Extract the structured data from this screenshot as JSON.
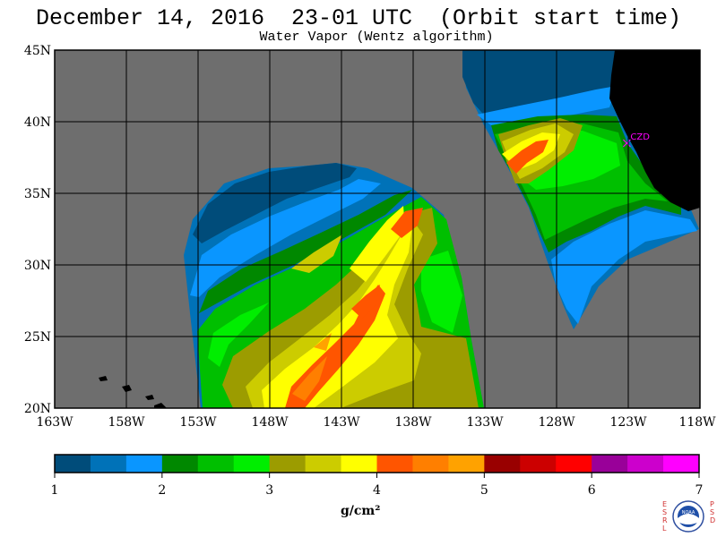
{
  "title": "December 14, 2016  23-01 UTC  (Orbit start time)",
  "subtitle": "Water Vapor (Wentz algorithm)",
  "map": {
    "lat_range": [
      20,
      45
    ],
    "lon_range": [
      -163,
      -118
    ],
    "lat_labels": [
      "45N",
      "40N",
      "35N",
      "30N",
      "25N",
      "20N"
    ],
    "lat_values": [
      45,
      40,
      35,
      30,
      25,
      20
    ],
    "lon_labels": [
      "163W",
      "158W",
      "153W",
      "148W",
      "143W",
      "138W",
      "133W",
      "128W",
      "123W",
      "118W"
    ],
    "lon_values": [
      -163,
      -158,
      -153,
      -148,
      -143,
      -138,
      -133,
      -128,
      -123,
      -118
    ],
    "no_data_color": "#6e6e6e",
    "land_color": "#000000",
    "station_label": "CZD",
    "station_color": "#ff00ff"
  },
  "colorbar": {
    "tick_labels": [
      "1",
      "2",
      "3",
      "4",
      "5",
      "6",
      "7"
    ],
    "tick_values": [
      1,
      2,
      3,
      4,
      5,
      6,
      7
    ],
    "units_label": "g/cm²",
    "colors": [
      "#004c7a",
      "#0072b8",
      "#0a96ff",
      "#008800",
      "#00bf00",
      "#00ee00",
      "#9c9c00",
      "#cccc00",
      "#ffff00",
      "#ff5500",
      "#ff7f00",
      "#ffa200",
      "#990000",
      "#cc0000",
      "#ff0000",
      "#990099",
      "#cc00cc",
      "#ff00ff"
    ]
  },
  "logo": {
    "left_letters": "ESRL",
    "right_letters": "PSD",
    "center": "NOAA"
  }
}
